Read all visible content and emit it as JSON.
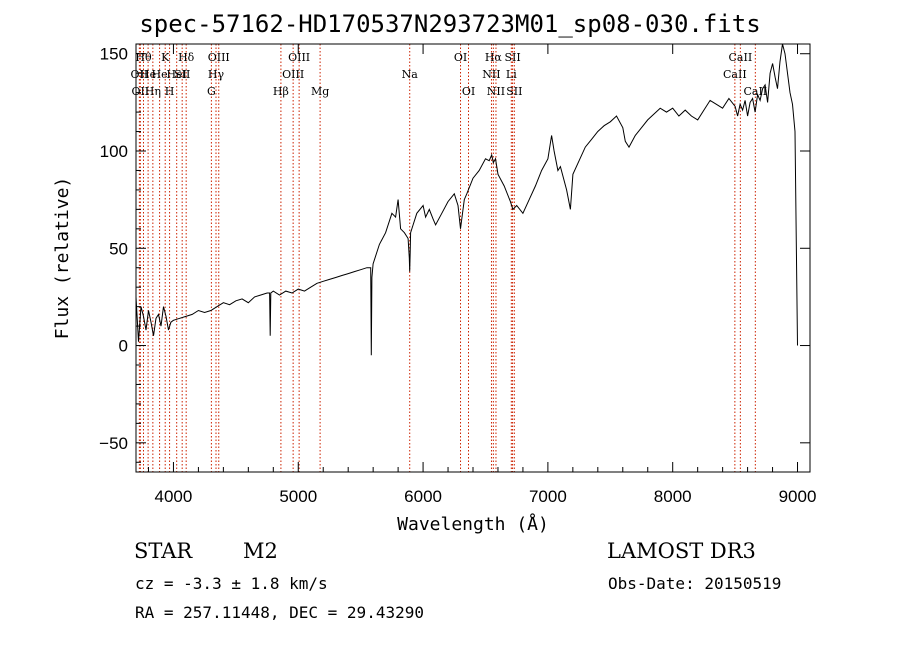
{
  "chart_data": {
    "type": "line",
    "title": "spec-57162-HD170537N293723M01_sp08-030.fits",
    "xlabel": "Wavelength (Å)",
    "ylabel": "Flux (relative)",
    "xlim": [
      3700,
      9100
    ],
    "ylim": [
      -65,
      155
    ],
    "x_ticks": [
      4000,
      5000,
      6000,
      7000,
      8000,
      9000
    ],
    "y_ticks": [
      -50,
      0,
      50,
      100,
      150
    ],
    "grid": false,
    "line_color": "#000000",
    "marker_color": "#cc2200",
    "series": [
      {
        "x": [
          3700,
          3720,
          3740,
          3760,
          3780,
          3800,
          3820,
          3840,
          3860,
          3880,
          3900,
          3920,
          3940,
          3960,
          3980,
          4000,
          4050,
          4100,
          4150,
          4200,
          4250,
          4300,
          4350,
          4400,
          4450,
          4500,
          4550,
          4600,
          4650,
          4700,
          4750,
          4770,
          4775,
          4780,
          4800,
          4850,
          4900,
          4950,
          5000,
          5050,
          5100,
          5150,
          5200,
          5250,
          5300,
          5350,
          5400,
          5450,
          5500,
          5550,
          5580,
          5585,
          5590,
          5600,
          5650,
          5700,
          5750,
          5780,
          5800,
          5820,
          5850,
          5880,
          5890,
          5893,
          5897,
          5900,
          5920,
          5950,
          6000,
          6020,
          6050,
          6080,
          6100,
          6150,
          6200,
          6250,
          6280,
          6300,
          6330,
          6350,
          6400,
          6450,
          6500,
          6530,
          6550,
          6563,
          6580,
          6600,
          6650,
          6700,
          6720,
          6750,
          6800,
          6850,
          6900,
          6950,
          7000,
          7030,
          7050,
          7080,
          7100,
          7150,
          7180,
          7200,
          7250,
          7300,
          7350,
          7400,
          7450,
          7500,
          7550,
          7600,
          7620,
          7650,
          7700,
          7750,
          7800,
          7850,
          7900,
          7950,
          8000,
          8050,
          8100,
          8150,
          8200,
          8250,
          8300,
          8350,
          8400,
          8450,
          8500,
          8520,
          8540,
          8560,
          8580,
          8600,
          8620,
          8640,
          8660,
          8680,
          8700,
          8720,
          8740,
          8760,
          8780,
          8800,
          8820,
          8840,
          8860,
          8880,
          8900,
          8920,
          8940,
          8960,
          8980,
          9000
        ],
        "y": [
          25,
          2,
          20,
          15,
          8,
          18,
          12,
          5,
          14,
          16,
          10,
          20,
          15,
          8,
          12,
          13,
          14,
          15,
          16,
          18,
          17,
          18,
          20,
          22,
          21,
          23,
          24,
          22,
          25,
          26,
          27,
          27,
          5,
          27,
          28,
          26,
          28,
          27,
          29,
          28,
          30,
          32,
          33,
          34,
          35,
          36,
          37,
          38,
          39,
          40,
          40,
          -5,
          35,
          42,
          52,
          58,
          68,
          66,
          75,
          60,
          58,
          55,
          45,
          38,
          48,
          58,
          62,
          68,
          72,
          66,
          70,
          65,
          62,
          68,
          74,
          78,
          72,
          60,
          75,
          78,
          86,
          90,
          96,
          95,
          98,
          94,
          96,
          88,
          82,
          74,
          70,
          72,
          68,
          75,
          82,
          90,
          96,
          108,
          100,
          90,
          92,
          80,
          70,
          88,
          95,
          102,
          106,
          110,
          113,
          115,
          118,
          112,
          105,
          102,
          108,
          112,
          116,
          119,
          122,
          120,
          122,
          118,
          121,
          118,
          116,
          121,
          126,
          124,
          122,
          127,
          123,
          118,
          124,
          121,
          126,
          118,
          125,
          127,
          120,
          129,
          126,
          132,
          134,
          125,
          140,
          145,
          138,
          132,
          146,
          155,
          150,
          140,
          130,
          124,
          110,
          0
        ]
      }
    ],
    "emission_lines": [
      {
        "x": 3727,
        "label": "OII",
        "row": 1
      },
      {
        "x": 3735,
        "label": "OII",
        "row": 2
      },
      {
        "x": 3760,
        "label": "Hθ",
        "row": 0
      },
      {
        "x": 3797,
        "label": "He",
        "row": 1
      },
      {
        "x": 3835,
        "label": "Hη",
        "row": 2
      },
      {
        "x": 3889,
        "label": "He",
        "row": 1
      },
      {
        "x": 3934,
        "label": "K",
        "row": 0
      },
      {
        "x": 3969,
        "label": "H",
        "row": 2
      },
      {
        "x": 4026,
        "label": "HeI",
        "row": 1
      },
      {
        "x": 4070,
        "label": "SII",
        "row": 1
      },
      {
        "x": 4102,
        "label": "Hδ",
        "row": 0
      },
      {
        "x": 4304,
        "label": "G",
        "row": 2
      },
      {
        "x": 4341,
        "label": "Hγ",
        "row": 1
      },
      {
        "x": 4363,
        "label": "OIII",
        "row": 0
      },
      {
        "x": 4861,
        "label": "Hβ",
        "row": 2
      },
      {
        "x": 4959,
        "label": "OIII",
        "row": 1
      },
      {
        "x": 5007,
        "label": "OIII",
        "row": 0
      },
      {
        "x": 5175,
        "label": "Mg",
        "row": 2
      },
      {
        "x": 5893,
        "label": "Na",
        "row": 1
      },
      {
        "x": 6300,
        "label": "OI",
        "row": 0
      },
      {
        "x": 6364,
        "label": "OI",
        "row": 2
      },
      {
        "x": 6548,
        "label": "NII",
        "row": 1
      },
      {
        "x": 6563,
        "label": "Hα",
        "row": 0
      },
      {
        "x": 6584,
        "label": "NII",
        "row": 2
      },
      {
        "x": 6707,
        "label": "Li",
        "row": 1
      },
      {
        "x": 6717,
        "label": "SII",
        "row": 0
      },
      {
        "x": 6731,
        "label": "SII",
        "row": 2
      },
      {
        "x": 8498,
        "label": "CaII",
        "row": 1
      },
      {
        "x": 8542,
        "label": "CaII",
        "row": 0
      },
      {
        "x": 8662,
        "label": "CaII",
        "row": 2
      }
    ]
  },
  "footer": {
    "object_class": "STAR",
    "subclass": "M2",
    "survey": "LAMOST DR3",
    "velocity": "cz = -3.3 ± 1.8 km/s",
    "obs_date": "Obs-Date: 20150519",
    "coords": "RA = 257.11448, DEC =  29.43290"
  }
}
